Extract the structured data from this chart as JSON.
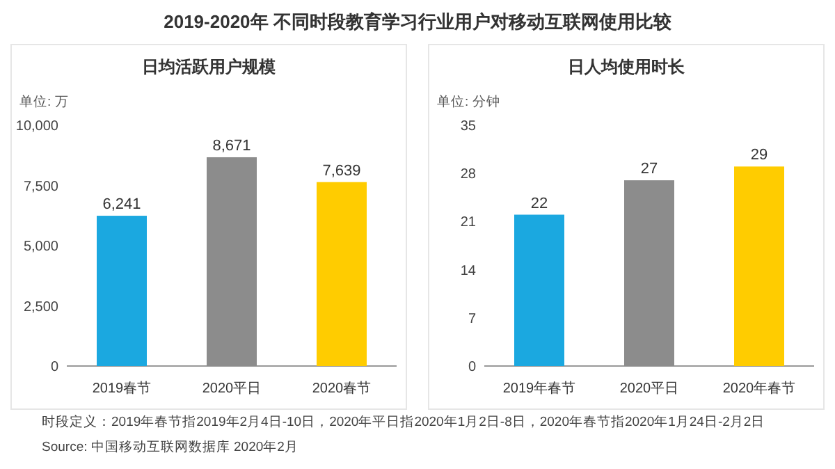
{
  "chart_data": [
    {
      "type": "other",
      "title": "2019-2020年 不同时段教育学习行业用户对移动互联网使用比较",
      "annotations": [
        "时段定义：2019年春节指2019年2月4日-10日，2020年平日指2020年1月2日-8日，2020年春节指2020年1月24日-2月2日",
        "Source: 中国移动互联网数据库 2020年2月"
      ]
    },
    {
      "type": "bar",
      "title": "日均活跃用户规模",
      "ylabel": "单位: 万",
      "categories": [
        "2019春节",
        "2020平日",
        "2020春节"
      ],
      "values": [
        6241,
        8671,
        7639
      ],
      "colors": [
        "#1ba8e0",
        "#8c8c8c",
        "#ffcc00"
      ],
      "value_labels": [
        "6,241",
        "8,671",
        "7,639"
      ],
      "ylim": [
        0,
        10000
      ],
      "yticks": [
        0,
        {
          "value": 2500,
          "label": "2,500"
        },
        {
          "value": 5000,
          "label": "5,000"
        },
        {
          "value": 7500,
          "label": "7,500"
        },
        {
          "value": 10000,
          "label": "10,000"
        }
      ],
      "grid": false
    },
    {
      "type": "bar",
      "title": "日人均使用时长",
      "ylabel": "单位: 分钟",
      "categories": [
        "2019年春节",
        "2020平日",
        "2020年春节"
      ],
      "values": [
        22,
        27,
        29
      ],
      "colors": [
        "#1ba8e0",
        "#8c8c8c",
        "#ffcc00"
      ],
      "data_labels": true,
      "ylim": [
        0,
        35
      ],
      "yticks": [
        0,
        7,
        14,
        21,
        28,
        35
      ],
      "grid": false
    }
  ]
}
